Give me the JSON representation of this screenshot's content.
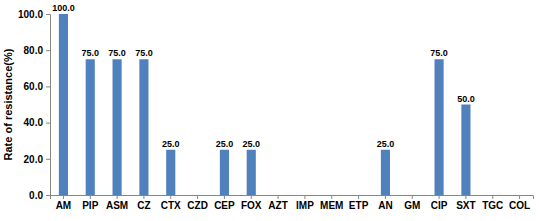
{
  "chart_data": {
    "type": "bar",
    "y_label": "Rate of resistance(%)",
    "categories": [
      "AM",
      "PIP",
      "ASM",
      "CZ",
      "CTX",
      "CZD",
      "CEP",
      "FOX",
      "AZT",
      "IMP",
      "MEM",
      "ETP",
      "AN",
      "GM",
      "CIP",
      "SXT",
      "TGC",
      "COL"
    ],
    "values": [
      100,
      75,
      75,
      75,
      25,
      0,
      25,
      25,
      0,
      0,
      0,
      0,
      25,
      0,
      75,
      50,
      0,
      0
    ],
    "value_labels": [
      "100.0",
      "75.0",
      "75.0",
      "75.0",
      "25.0",
      null,
      "25.0",
      "25.0",
      null,
      null,
      null,
      null,
      "25.0",
      null,
      "75.0",
      "50.0",
      null,
      null
    ],
    "data_labels": true,
    "color": "#4f81bd",
    "ylim": [
      0,
      100
    ],
    "yticks": [
      {
        "value": 0,
        "label": "0.0"
      },
      {
        "value": 20,
        "label": "20.0"
      },
      {
        "value": 40,
        "label": "40.0"
      },
      {
        "value": 60,
        "label": "60.0"
      },
      {
        "value": 80,
        "label": "80.0"
      },
      {
        "value": 100,
        "label": "100.0"
      }
    ],
    "grid": false
  }
}
